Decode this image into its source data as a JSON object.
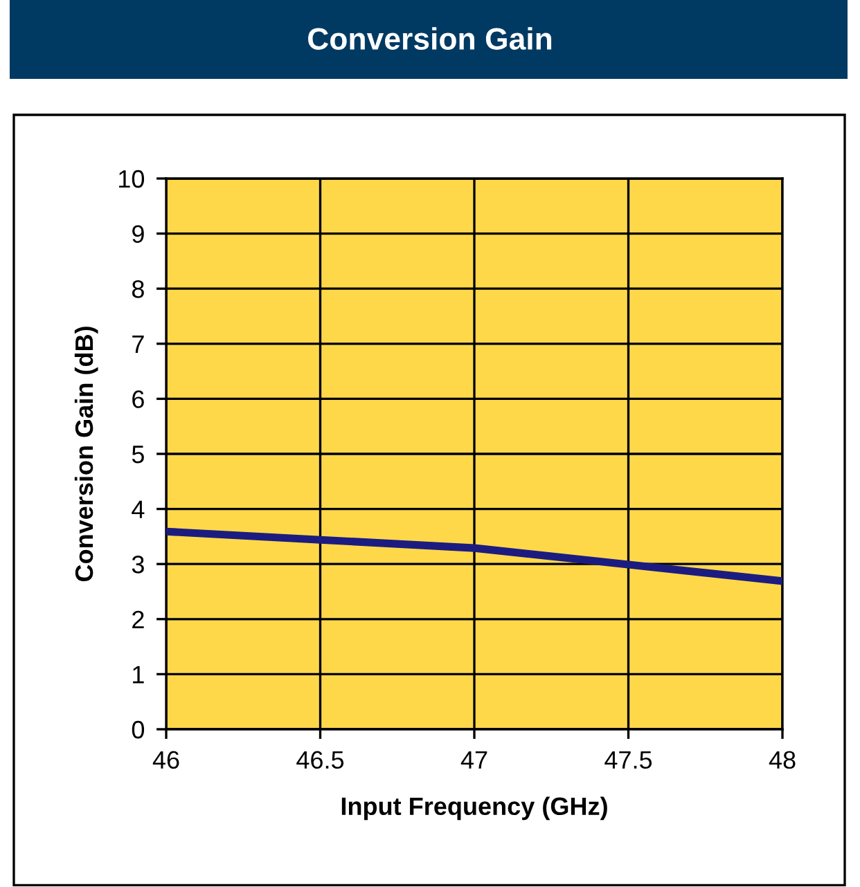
{
  "chart_data": {
    "type": "line",
    "title": "Conversion Gain",
    "xlabel": "Input Frequency (GHz)",
    "ylabel": "Conversion Gain (dB)",
    "x": [
      46,
      46.5,
      47,
      47.5,
      48
    ],
    "series": [
      {
        "color": "#1c1c80",
        "values": [
          3.59,
          3.44,
          3.29,
          2.99,
          2.69
        ]
      }
    ],
    "xlim": [
      46,
      48
    ],
    "xticks": [
      46,
      46.5,
      47,
      47.5,
      48
    ],
    "ylim": [
      0,
      10
    ],
    "yticks": [
      0,
      1,
      2,
      3,
      4,
      5,
      6,
      7,
      8,
      9,
      10
    ],
    "grid": true,
    "legend": false,
    "marker": "none",
    "line_style": "solid"
  }
}
